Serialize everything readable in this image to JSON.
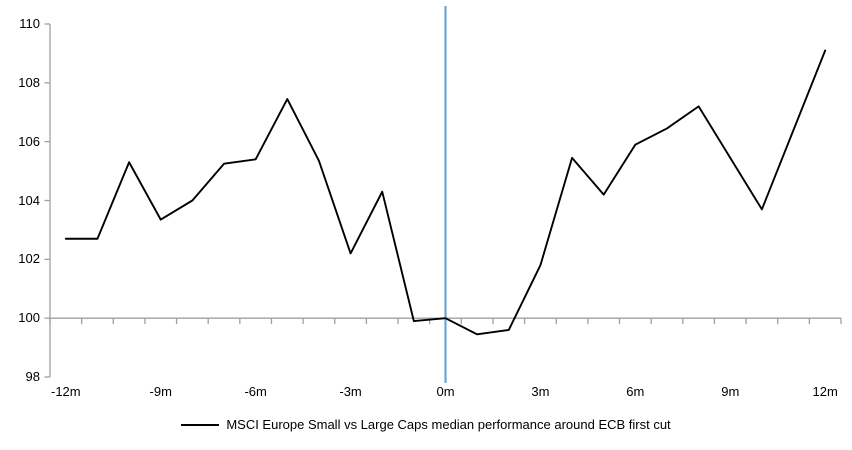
{
  "chart_data": {
    "type": "line",
    "legend": "MSCI Europe Small vs Large Caps median performance around ECB first cut",
    "categories": [
      "-12m",
      "-11m",
      "-10m",
      "-9m",
      "-8m",
      "-7m",
      "-6m",
      "-5m",
      "-4m",
      "-3m",
      "-2m",
      "-1m",
      "0m",
      "1m",
      "2m",
      "3m",
      "4m",
      "5m",
      "6m",
      "7m",
      "8m",
      "9m",
      "10m",
      "11m",
      "12m"
    ],
    "series": [
      {
        "name": "MSCI Europe Small vs Large Caps median performance around ECB first cut",
        "color": "#000000",
        "values": [
          102.7,
          102.7,
          105.3,
          103.35,
          104.0,
          105.25,
          105.4,
          107.45,
          105.35,
          102.2,
          104.3,
          99.9,
          100.0,
          99.45,
          99.6,
          101.8,
          105.45,
          104.2,
          105.9,
          106.45,
          107.2,
          105.45,
          103.7,
          106.4,
          109.1
        ]
      }
    ],
    "x_tick_labels": [
      "-12m",
      "-9m",
      "-6m",
      "-3m",
      "0m",
      "3m",
      "6m",
      "9m",
      "12m"
    ],
    "y_ticks": [
      98,
      100,
      102,
      104,
      106,
      108,
      110
    ],
    "ylim": [
      98,
      110
    ],
    "baseline": 100,
    "event_line": {
      "at": "0m",
      "color": "#6EA5CD"
    },
    "axis_color": "#A0A0A0",
    "grid": false,
    "legend_position": "bottom",
    "title": ""
  }
}
